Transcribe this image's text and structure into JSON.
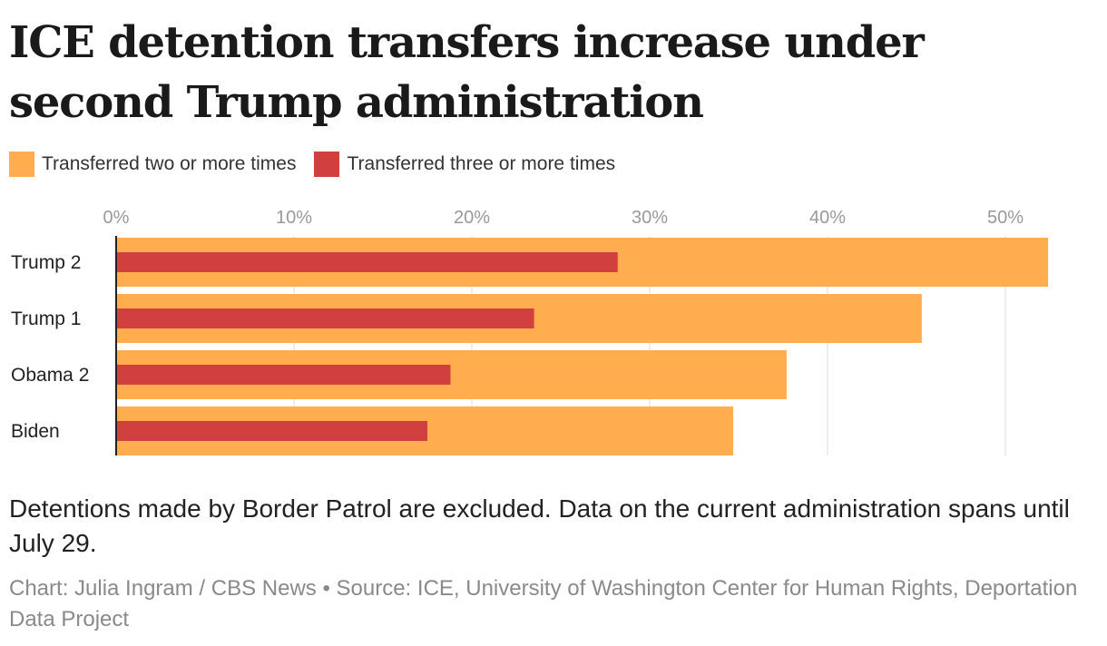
{
  "title": "ICE detention transfers increase under second Trump administration",
  "legend": {
    "two_plus": "Transferred two or more times",
    "three_plus": "Transferred three or more times"
  },
  "colors": {
    "two_plus": "#ffad4f",
    "three_plus": "#d13f3f",
    "grid": "#dddddd",
    "tick": "#999999"
  },
  "chart_data": {
    "type": "bar",
    "orientation": "horizontal",
    "title": "ICE detention transfers increase under second Trump administration",
    "xlabel": "",
    "ylabel": "",
    "categories": [
      "Trump 2",
      "Trump 1",
      "Obama 2",
      "Biden"
    ],
    "series": [
      {
        "name": "Transferred two or more times",
        "values": [
          52.4,
          45.3,
          37.7,
          34.7
        ]
      },
      {
        "name": "Transferred three or more times",
        "values": [
          28.2,
          23.5,
          18.8,
          17.5
        ]
      }
    ],
    "xlim": [
      0,
      53
    ],
    "xticks": [
      0,
      10,
      20,
      30,
      40,
      50
    ],
    "xtick_labels": [
      "0%",
      "10%",
      "20%",
      "30%",
      "40%",
      "50%"
    ],
    "grid": true,
    "legend_position": "top-left"
  },
  "note": "Detentions made by Border Patrol are excluded. Data on the current administration spans until July 29.",
  "credit": "Chart: Julia Ingram / CBS News • Source: ICE, University of Washington Center for Human Rights, Deportation Data Project"
}
